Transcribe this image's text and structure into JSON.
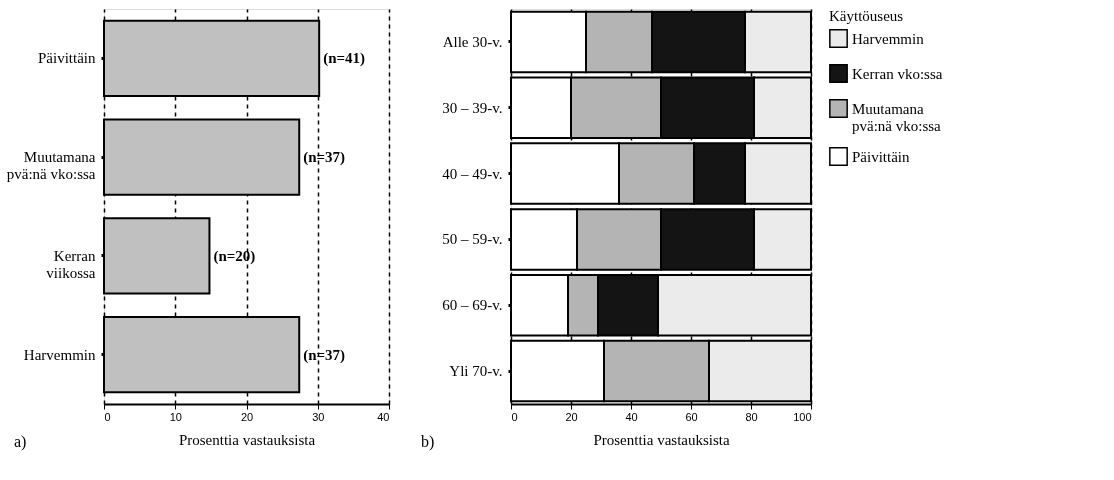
{
  "chart_data": [
    {
      "type": "bar",
      "orientation": "horizontal",
      "categories": [
        "Päivittäin",
        "Muutamana pvä:nä vko:ssa",
        "Kerran viikossa",
        "Harvemmin"
      ],
      "values": [
        30.2,
        27.4,
        14.8,
        27.4
      ],
      "color": "#c0c0c0",
      "xlim": [
        0,
        40
      ],
      "xticks": [
        0,
        10,
        20,
        30,
        40
      ],
      "grid": "x",
      "xlabel": "Prosenttia vastauksista",
      "annotations": [
        {
          "text": "(n=41)",
          "x": 30.2,
          "y": "Päivittäin"
        },
        {
          "text": "(n=37)",
          "x": 27.4,
          "y": "Muutamana pvä:nä vko:ssa"
        },
        {
          "text": "(n=20)",
          "x": 14.8,
          "y": "Kerran viikossa"
        },
        {
          "text": "(n=37)",
          "x": 27.4,
          "y": "Harvemmin"
        },
        "a)"
      ]
    },
    {
      "type": "bar",
      "orientation": "horizontal",
      "stacked": true,
      "categories": [
        "Alle 30-v.",
        "30 – 39-v.",
        "40 – 49-v.",
        "50 – 59-v.",
        "60 – 69-v.",
        "Yli 70-v."
      ],
      "series": [
        {
          "name": "Päivittäin",
          "color": "#ffffff",
          "values": [
            25,
            20,
            36,
            22,
            19,
            31
          ]
        },
        {
          "name": "Muutamana pvä:nä vko:ssa",
          "color": "#b4b4b4",
          "values": [
            22,
            30,
            25,
            28,
            10,
            35
          ]
        },
        {
          "name": "Kerran vko:ssa",
          "color": "#141414",
          "values": [
            31,
            31,
            17,
            31,
            20,
            0
          ]
        },
        {
          "name": "Harvemmin",
          "color": "#ebebeb",
          "values": [
            22,
            19,
            22,
            19,
            51,
            34
          ]
        }
      ],
      "xlim": [
        0,
        100
      ],
      "xticks": [
        0,
        20,
        40,
        60,
        80,
        100
      ],
      "grid": "x",
      "legend": "right",
      "legend_title": "Käyttöuseus",
      "xlabel": "Prosenttia vastauksista",
      "annotations": [
        "b)"
      ]
    }
  ]
}
